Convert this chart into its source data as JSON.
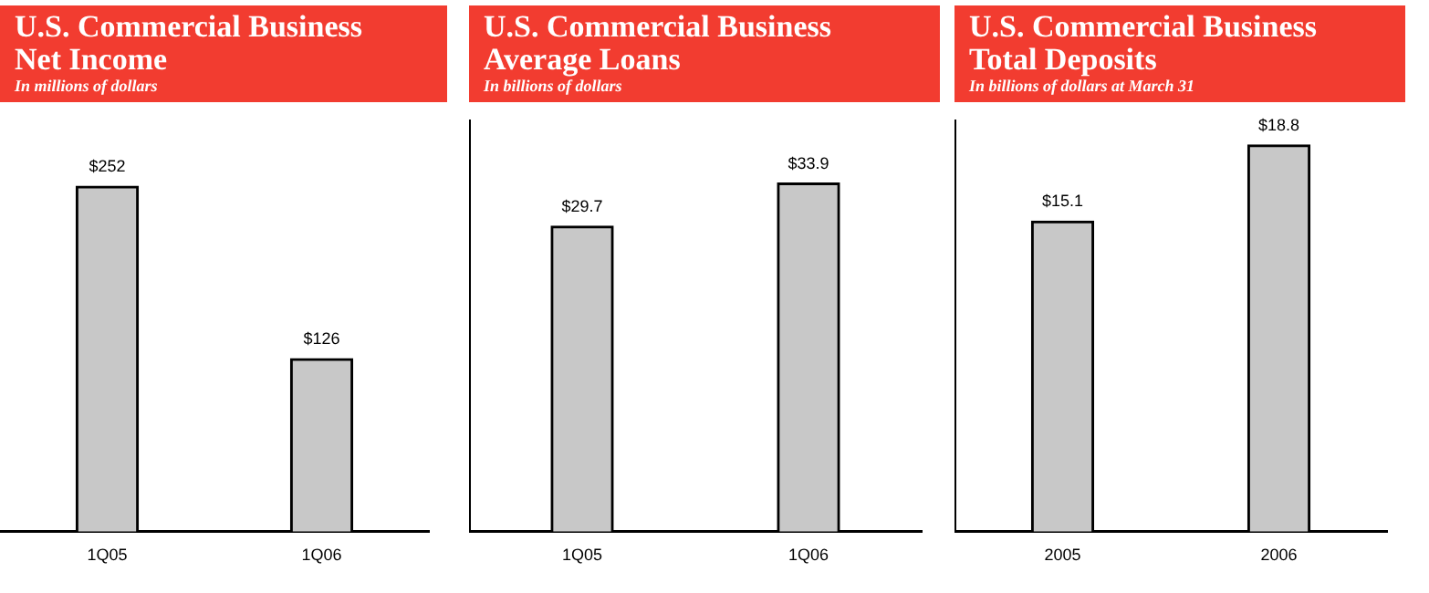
{
  "chart_data": [
    {
      "type": "bar",
      "title": "U.S. Commercial Business\nNet Income",
      "subtitle": "In millions of dollars",
      "categories": [
        "1Q05",
        "1Q06"
      ],
      "values": [
        252,
        126
      ],
      "value_labels": [
        "$252",
        "$126"
      ],
      "color": "#c8c8c8",
      "grid": false,
      "legend": false,
      "tick_labels": "x"
    },
    {
      "type": "bar",
      "title": "U.S. Commercial Business\nAverage Loans",
      "subtitle": "In billions of dollars",
      "categories": [
        "1Q05",
        "1Q06"
      ],
      "values": [
        29.7,
        33.9
      ],
      "value_labels": [
        "$29.7",
        "$33.9"
      ],
      "color": "#c8c8c8",
      "grid": false,
      "legend": false,
      "tick_labels": "x"
    },
    {
      "type": "bar",
      "title": "U.S. Commercial Business\nTotal Deposits",
      "subtitle": "In billions of dollars at March 31",
      "categories": [
        "2005",
        "2006"
      ],
      "values": [
        15.1,
        18.8
      ],
      "value_labels": [
        "$15.1",
        "$18.8"
      ],
      "color": "#c8c8c8",
      "grid": false,
      "legend": false,
      "tick_labels": "x"
    }
  ]
}
